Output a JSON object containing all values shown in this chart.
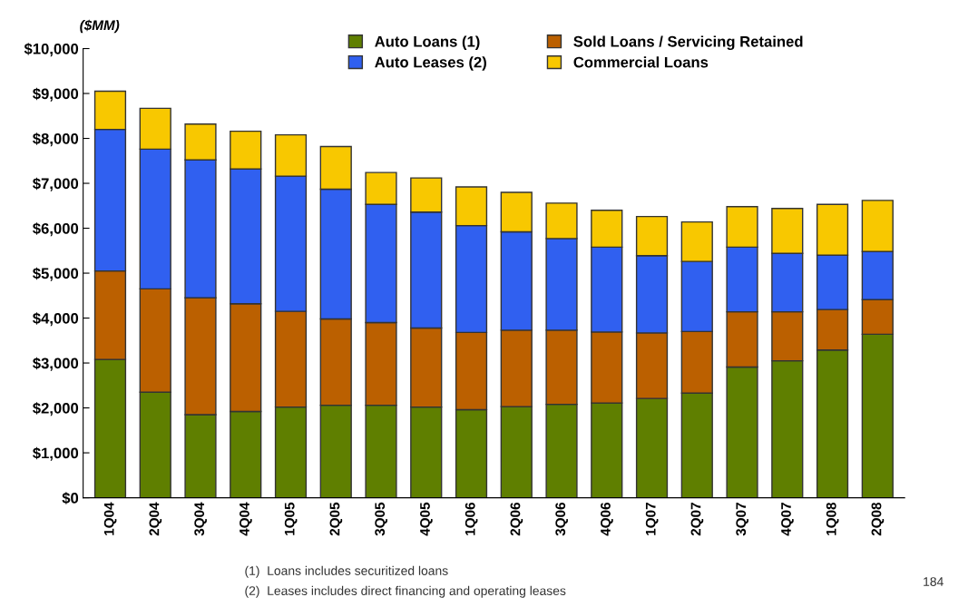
{
  "chart_data": {
    "type": "bar",
    "stacked": true,
    "ylabel": "($MM)",
    "categories": [
      "1Q04",
      "2Q04",
      "3Q04",
      "4Q04",
      "1Q05",
      "2Q05",
      "3Q05",
      "4Q05",
      "1Q06",
      "2Q06",
      "3Q06",
      "4Q06",
      "1Q07",
      "2Q07",
      "3Q07",
      "4Q07",
      "1Q08",
      "2Q08"
    ],
    "series": [
      {
        "name": "Auto Loans (1)",
        "color": "#5f7f00",
        "values": [
          3080,
          2350,
          1850,
          1920,
          2020,
          2060,
          2060,
          2020,
          1960,
          2030,
          2080,
          2110,
          2210,
          2330,
          2910,
          3050,
          3290,
          3640
        ]
      },
      {
        "name": "Sold Loans / Servicing Retained",
        "color": "#bb6000",
        "values": [
          1970,
          2300,
          2600,
          2400,
          2130,
          1920,
          1840,
          1760,
          1720,
          1700,
          1650,
          1580,
          1460,
          1370,
          1230,
          1090,
          900,
          770
        ]
      },
      {
        "name": "Auto Leases (2)",
        "color": "#3060f0",
        "values": [
          3150,
          3110,
          3070,
          3000,
          3010,
          2890,
          2630,
          2580,
          2380,
          2190,
          2040,
          1890,
          1720,
          1560,
          1440,
          1300,
          1210,
          1070
        ]
      },
      {
        "name": "Commercial Loans",
        "color": "#f8c800",
        "values": [
          850,
          910,
          800,
          840,
          920,
          950,
          710,
          760,
          860,
          880,
          790,
          820,
          870,
          880,
          900,
          1000,
          1130,
          1140
        ]
      }
    ],
    "ylim": [
      0,
      10000
    ],
    "yticks": [
      {
        "value": 0,
        "label": "$0"
      },
      {
        "value": 1000,
        "label": "$1,000"
      },
      {
        "value": 2000,
        "label": "$2,000"
      },
      {
        "value": 3000,
        "label": "$3,000"
      },
      {
        "value": 4000,
        "label": "$4,000"
      },
      {
        "value": 5000,
        "label": "$5,000"
      },
      {
        "value": 6000,
        "label": "$6,000"
      },
      {
        "value": 7000,
        "label": "$7,000"
      },
      {
        "value": 8000,
        "label": "$8,000"
      },
      {
        "value": 9000,
        "label": "$9,000"
      },
      {
        "value": 10000,
        "label": "$10,000"
      }
    ],
    "grid": false,
    "legend": "top",
    "annotations": [
      "(1)  Loans includes securitized loans",
      "(2)  Leases includes direct financing and operating leases",
      "184"
    ]
  }
}
